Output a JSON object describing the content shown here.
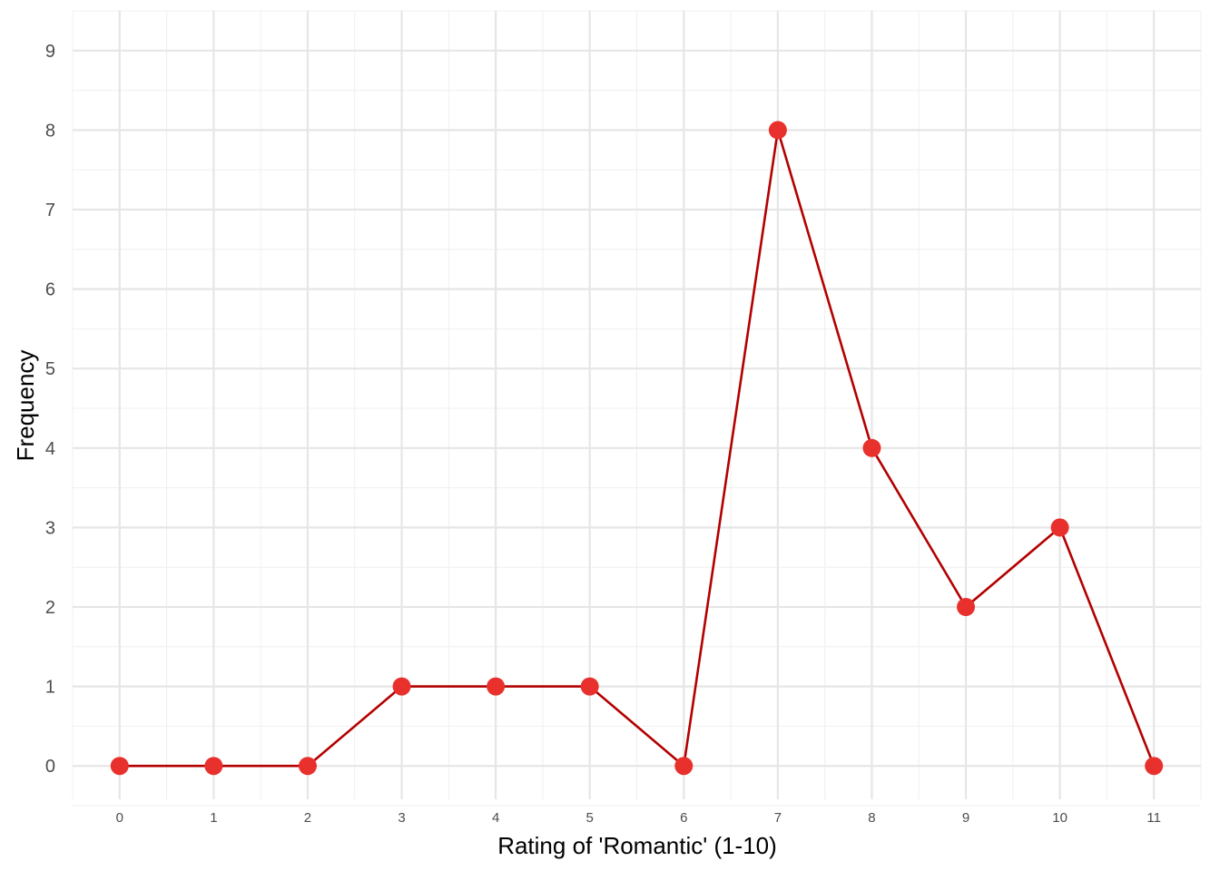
{
  "chart_data": {
    "type": "line",
    "title": "",
    "xlabel": "Rating of 'Romantic' (1-10)",
    "ylabel": "Frequency",
    "x": [
      0,
      1,
      2,
      3,
      4,
      5,
      6,
      7,
      8,
      9,
      10,
      11
    ],
    "series": [
      {
        "values": [
          0,
          0,
          0,
          1,
          1,
          1,
          0,
          8,
          4,
          2,
          3,
          0
        ]
      }
    ],
    "x_ticks": [
      "0",
      "1",
      "2",
      "3",
      "4",
      "5",
      "6",
      "7",
      "8",
      "9",
      "10",
      "11"
    ],
    "y_ticks": [
      "0",
      "1",
      "2",
      "3",
      "4",
      "5",
      "6",
      "7",
      "8",
      "9"
    ],
    "xlim": [
      -0.5,
      11.5
    ],
    "ylim": [
      -0.42,
      9.5
    ],
    "grid": true,
    "legend": "none",
    "colors": {
      "line": "#b30000",
      "point": "#e8312d",
      "grid_major": "#e6e6e6",
      "grid_minor": "#f1f1f1",
      "tick_text": "#4d4d4d"
    }
  }
}
